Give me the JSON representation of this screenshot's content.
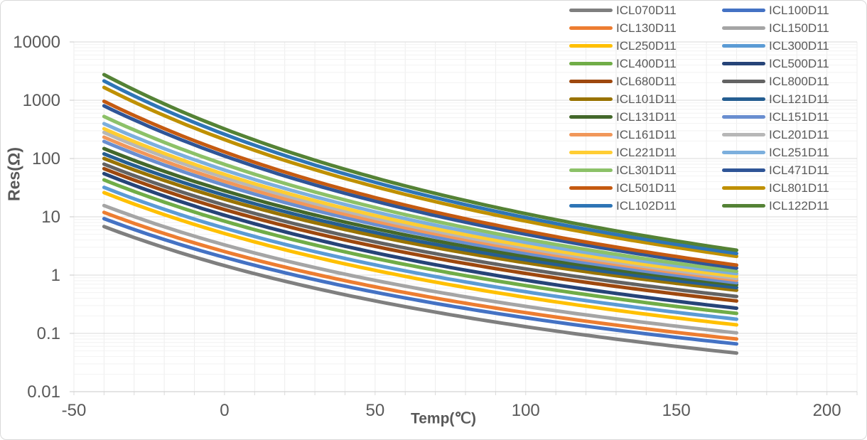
{
  "chart_data": {
    "type": "line",
    "title": "",
    "xlabel": "Temp(℃)",
    "ylabel": "Res(Ω)",
    "x_axis": {
      "min": -50,
      "max": 210,
      "tick_values": [
        -50,
        0,
        50,
        100,
        150,
        200
      ],
      "tick_labels": [
        "-50",
        "0",
        "50",
        "100",
        "150",
        "200"
      ],
      "minor_grid_step": 10
    },
    "y_axis": {
      "scale": "log10",
      "min": 0.01,
      "max": 10000,
      "tick_values": [
        10000,
        1000,
        100,
        10,
        1,
        0.1,
        0.01
      ],
      "tick_labels": [
        "10000",
        "1000",
        "100",
        "10",
        "1",
        "0.1",
        "0.01"
      ],
      "minor_gridlines": "log decades 2-9"
    },
    "grid": true,
    "legend_position": "top-right",
    "legend_columns": 2,
    "series_temp_range_c": [
      -40,
      170
    ],
    "interpolation_model": "ln(R) linear in 1/T(kelvin) between the two endpoint values",
    "series": [
      {
        "name": "ICL070D11",
        "color": "#7F7F7F",
        "r_at_minus40C": 6.8,
        "r_at_170C": 0.046
      },
      {
        "name": "ICL100D11",
        "color": "#4472C4",
        "r_at_minus40C": 9.3,
        "r_at_170C": 0.066
      },
      {
        "name": "ICL130D11",
        "color": "#ED7D31",
        "r_at_minus40C": 11.9,
        "r_at_170C": 0.08
      },
      {
        "name": "ICL150D11",
        "color": "#A5A5A5",
        "r_at_minus40C": 15.6,
        "r_at_170C": 0.102
      },
      {
        "name": "ICL250D11",
        "color": "#FFC000",
        "r_at_minus40C": 26,
        "r_at_170C": 0.14
      },
      {
        "name": "ICL300D11",
        "color": "#5B9BD5",
        "r_at_minus40C": 32,
        "r_at_170C": 0.175
      },
      {
        "name": "ICL400D11",
        "color": "#70AD47",
        "r_at_minus40C": 43,
        "r_at_170C": 0.22
      },
      {
        "name": "ICL500D11",
        "color": "#264478",
        "r_at_minus40C": 55,
        "r_at_170C": 0.27
      },
      {
        "name": "ICL680D11",
        "color": "#9E480E",
        "r_at_minus40C": 67,
        "r_at_170C": 0.36
      },
      {
        "name": "ICL800D11",
        "color": "#636363",
        "r_at_minus40C": 80,
        "r_at_170C": 0.43
      },
      {
        "name": "ICL101D11",
        "color": "#997300",
        "r_at_minus40C": 100,
        "r_at_170C": 0.55
      },
      {
        "name": "ICL121D11",
        "color": "#255E91",
        "r_at_minus40C": 120,
        "r_at_170C": 0.61
      },
      {
        "name": "ICL131D11",
        "color": "#43682B",
        "r_at_minus40C": 148,
        "r_at_170C": 0.68
      },
      {
        "name": "ICL151D11",
        "color": "#698ED0",
        "r_at_minus40C": 196,
        "r_at_170C": 0.74
      },
      {
        "name": "ICL161D11",
        "color": "#F1975A",
        "r_at_minus40C": 232,
        "r_at_170C": 0.82
      },
      {
        "name": "ICL201D11",
        "color": "#B7B7B7",
        "r_at_minus40C": 280,
        "r_at_170C": 0.88
      },
      {
        "name": "ICL221D11",
        "color": "#FFCD33",
        "r_at_minus40C": 324,
        "r_at_170C": 0.95
      },
      {
        "name": "ICL251D11",
        "color": "#7CAFDD",
        "r_at_minus40C": 396,
        "r_at_170C": 1.06
      },
      {
        "name": "ICL301D11",
        "color": "#8CC168",
        "r_at_minus40C": 525,
        "r_at_170C": 1.16
      },
      {
        "name": "ICL471D11",
        "color": "#2F5597",
        "r_at_minus40C": 800,
        "r_at_170C": 1.32
      },
      {
        "name": "ICL501D11",
        "color": "#C55A11",
        "r_at_minus40C": 960,
        "r_at_170C": 1.48
      },
      {
        "name": "ICL801D11",
        "color": "#BF9000",
        "r_at_minus40C": 1660,
        "r_at_170C": 2.1
      },
      {
        "name": "ICL102D11",
        "color": "#2E75B6",
        "r_at_minus40C": 2140,
        "r_at_170C": 2.35
      },
      {
        "name": "ICL122D11",
        "color": "#548235",
        "r_at_minus40C": 2750,
        "r_at_170C": 2.67
      }
    ]
  },
  "colors": {
    "text": "#595959",
    "grid_major": "#D9D9D9",
    "grid_minor": "#F2F2F2",
    "grid_vertical": "#EDEDED",
    "axis_line": "#C9C9C9",
    "background": "#FFFFFF",
    "frame_border": "#D9D9D9"
  }
}
